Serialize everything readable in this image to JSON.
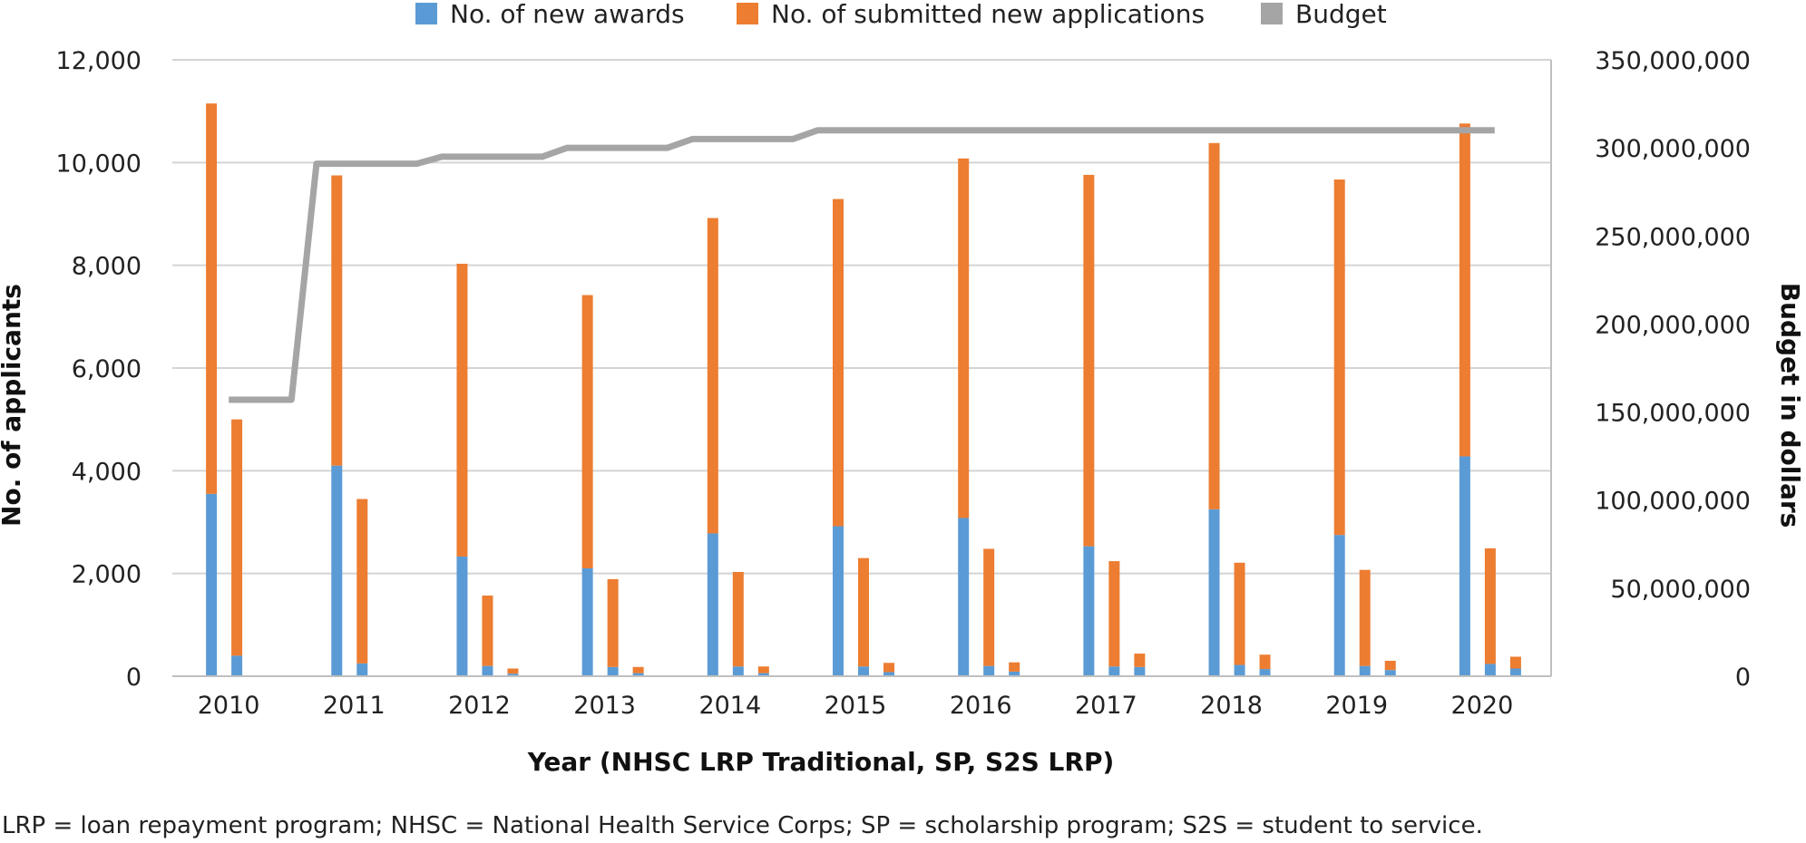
{
  "chart_data": {
    "type": "bar",
    "subtype": "stacked-bar-with-line",
    "categories": [
      "2010",
      "2011",
      "2012",
      "2013",
      "2014",
      "2015",
      "2016",
      "2017",
      "2018",
      "2019",
      "2020"
    ],
    "xlabel": "Year (NHSC LRP Traditional, SP, S2S LRP)",
    "ylabel": "No. of applicants",
    "y2label": "Budget in dollars",
    "ylim": [
      0,
      12000
    ],
    "y2lim": [
      0,
      350000000
    ],
    "yticks": [
      "0",
      "2,000",
      "4,000",
      "6,000",
      "8,000",
      "10,000",
      "12,000"
    ],
    "y2ticks": [
      "0",
      "50,000,000",
      "100,000,000",
      "150,000,000",
      "200,000,000",
      "250,000,000",
      "300,000,000",
      "350,000,000"
    ],
    "grid": true,
    "legend_position": "top",
    "groups": [
      {
        "awards": [
          3550,
          400,
          0
        ],
        "applications": [
          7600,
          4600,
          0
        ]
      },
      {
        "awards": [
          4100,
          250,
          0
        ],
        "applications": [
          5650,
          3200,
          0
        ]
      },
      {
        "awards": [
          2330,
          200,
          50
        ],
        "applications": [
          5700,
          1370,
          100
        ]
      },
      {
        "awards": [
          2100,
          180,
          60
        ],
        "applications": [
          5320,
          1710,
          120
        ]
      },
      {
        "awards": [
          2780,
          190,
          60
        ],
        "applications": [
          6140,
          1840,
          130
        ]
      },
      {
        "awards": [
          2920,
          190,
          80
        ],
        "applications": [
          6370,
          2110,
          180
        ]
      },
      {
        "awards": [
          3080,
          200,
          90
        ],
        "applications": [
          7000,
          2280,
          180
        ]
      },
      {
        "awards": [
          2530,
          190,
          180
        ],
        "applications": [
          7230,
          2050,
          260
        ]
      },
      {
        "awards": [
          3250,
          220,
          140
        ],
        "applications": [
          7130,
          1990,
          280
        ]
      },
      {
        "awards": [
          2750,
          200,
          120
        ],
        "applications": [
          6920,
          1870,
          180
        ]
      },
      {
        "awards": [
          4280,
          240,
          150
        ],
        "applications": [
          6480,
          2250,
          230
        ]
      }
    ],
    "budget_line": [
      {
        "x": 2009.95,
        "y": 157000000
      },
      {
        "x": 2010.45,
        "y": 157000000
      },
      {
        "x": 2010.65,
        "y": 291000000
      },
      {
        "x": 2011.45,
        "y": 291000000
      },
      {
        "x": 2011.65,
        "y": 295000000
      },
      {
        "x": 2012.45,
        "y": 295000000
      },
      {
        "x": 2012.65,
        "y": 300000000
      },
      {
        "x": 2013.45,
        "y": 300000000
      },
      {
        "x": 2013.65,
        "y": 305000000
      },
      {
        "x": 2014.45,
        "y": 305000000
      },
      {
        "x": 2014.65,
        "y": 310000000
      },
      {
        "x": 2020.05,
        "y": 310000000
      }
    ],
    "series": [
      {
        "name": "No. of new awards",
        "color": "#5b9bd5"
      },
      {
        "name": "No. of submitted new applications",
        "color": "#ed7d31"
      },
      {
        "name": "Budget",
        "color": "#a5a5a5"
      }
    ],
    "footnote": "LRP = loan repayment program; NHSC = National Health Service Corps; SP = scholarship program; S2S = student to service."
  }
}
